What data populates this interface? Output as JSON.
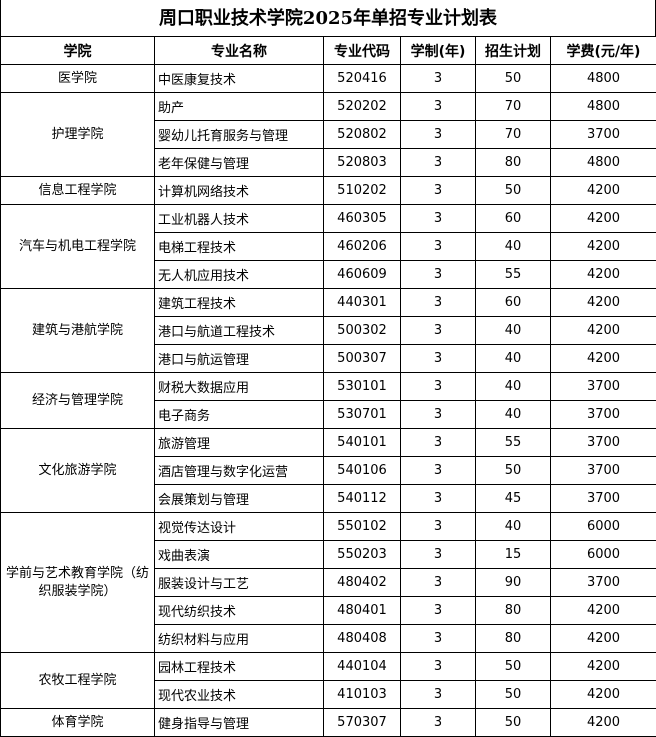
{
  "title": "周口职业技术学院2025年单招专业计划表",
  "headers": [
    "学院",
    "专业名称",
    "专业代码",
    "学制(年)",
    "招生计划",
    "学费(元/年)"
  ],
  "groups": [
    {
      "college": "医学院",
      "rows": [
        [
          "中医康复技术",
          "520416",
          "3",
          "50",
          "4800"
        ]
      ]
    },
    {
      "college": "护理学院",
      "rows": [
        [
          "助产",
          "520202",
          "3",
          "70",
          "4800"
        ],
        [
          "婴幼儿托育服务与管理",
          "520802",
          "3",
          "70",
          "3700"
        ],
        [
          "老年保健与管理",
          "520803",
          "3",
          "80",
          "4800"
        ]
      ]
    },
    {
      "college": "信息工程学院",
      "rows": [
        [
          "计算机网络技术",
          "510202",
          "3",
          "50",
          "4200"
        ]
      ]
    },
    {
      "college": "汽车与机电工程学院",
      "rows": [
        [
          "工业机器人技术",
          "460305",
          "3",
          "60",
          "4200"
        ],
        [
          "电梯工程技术",
          "460206",
          "3",
          "40",
          "4200"
        ],
        [
          "无人机应用技术",
          "460609",
          "3",
          "55",
          "4200"
        ]
      ]
    },
    {
      "college": "建筑与港航学院",
      "rows": [
        [
          "建筑工程技术",
          "440301",
          "3",
          "60",
          "4200"
        ],
        [
          "港口与航道工程技术",
          "500302",
          "3",
          "40",
          "4200"
        ],
        [
          "港口与航运管理",
          "500307",
          "3",
          "40",
          "4200"
        ]
      ]
    },
    {
      "college": "经济与管理学院",
      "rows": [
        [
          "财税大数据应用",
          "530101",
          "3",
          "40",
          "3700"
        ],
        [
          "电子商务",
          "530701",
          "3",
          "40",
          "3700"
        ]
      ]
    },
    {
      "college": "文化旅游学院",
      "rows": [
        [
          "旅游管理",
          "540101",
          "3",
          "55",
          "3700"
        ],
        [
          "酒店管理与数字化运营",
          "540106",
          "3",
          "50",
          "3700"
        ],
        [
          "会展策划与管理",
          "540112",
          "3",
          "45",
          "3700"
        ]
      ]
    },
    {
      "college": "学前与艺术教育学院（纺织服装学院）",
      "rows": [
        [
          "视觉传达设计",
          "550102",
          "3",
          "40",
          "6000"
        ],
        [
          "戏曲表演",
          "550203",
          "3",
          "15",
          "6000"
        ],
        [
          "服装设计与工艺",
          "480402",
          "3",
          "90",
          "3700"
        ],
        [
          "现代纺织技术",
          "480401",
          "3",
          "80",
          "4200"
        ],
        [
          "纺织材料与应用",
          "480408",
          "3",
          "80",
          "4200"
        ]
      ]
    },
    {
      "college": "农牧工程学院",
      "rows": [
        [
          "园林工程技术",
          "440104",
          "3",
          "50",
          "4200"
        ],
        [
          "现代农业技术",
          "410103",
          "3",
          "50",
          "4200"
        ]
      ]
    },
    {
      "college": "体育学院",
      "rows": [
        [
          "健身指导与管理",
          "570307",
          "3",
          "50",
          "4200"
        ]
      ]
    }
  ]
}
